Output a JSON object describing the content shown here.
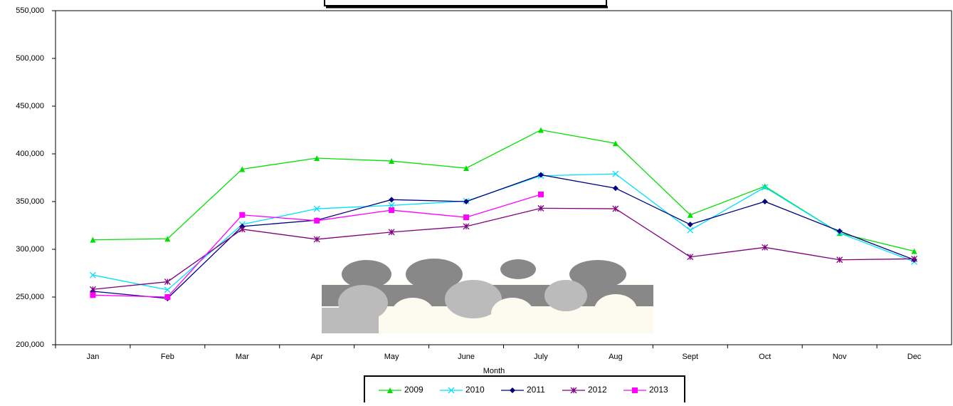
{
  "chart_data": {
    "type": "line",
    "x_label": "Month",
    "categories": [
      "Jan",
      "Feb",
      "Mar",
      "Apr",
      "May",
      "June",
      "July",
      "Aug",
      "Sept",
      "Oct",
      "Nov",
      "Dec"
    ],
    "series": [
      {
        "name": "2009",
        "color": "#00e000",
        "marker": "triangle",
        "values": [
          310000,
          311000,
          384000,
          395500,
          392500,
          385000,
          425000,
          411000,
          336000,
          366000,
          317000,
          298000
        ]
      },
      {
        "name": "2010",
        "color": "#00e0ff",
        "marker": "x",
        "values": [
          273000,
          257500,
          326000,
          342500,
          346000,
          350500,
          377000,
          379000,
          320000,
          365000,
          317000,
          287000
        ]
      },
      {
        "name": "2011",
        "color": "#000080",
        "marker": "diamond",
        "values": [
          256000,
          248500,
          324000,
          330500,
          352000,
          350000,
          378000,
          364000,
          326000,
          350000,
          319000,
          289000
        ]
      },
      {
        "name": "2012",
        "color": "#800080",
        "marker": "asterisk",
        "values": [
          258000,
          266000,
          321000,
          310500,
          318000,
          324000,
          343000,
          342500,
          292000,
          302000,
          289000,
          290000
        ]
      },
      {
        "name": "2013",
        "color": "#ff00ff",
        "marker": "square",
        "values": [
          252000,
          250000,
          336000,
          330000,
          341000,
          333500,
          357500,
          null,
          null,
          null,
          null,
          null
        ]
      }
    ],
    "ylim": [
      200000,
      550000
    ],
    "yticks": [
      {
        "value": 200000,
        "label": "200,000"
      },
      {
        "value": 250000,
        "label": "250,000"
      },
      {
        "value": 300000,
        "label": "300,000"
      },
      {
        "value": 350000,
        "label": "350,000"
      },
      {
        "value": 400000,
        "label": "400,000"
      },
      {
        "value": 450000,
        "label": "450,000"
      },
      {
        "value": 500000,
        "label": "500,000"
      },
      {
        "value": 550000,
        "label": "550,000"
      }
    ],
    "grid": false
  }
}
